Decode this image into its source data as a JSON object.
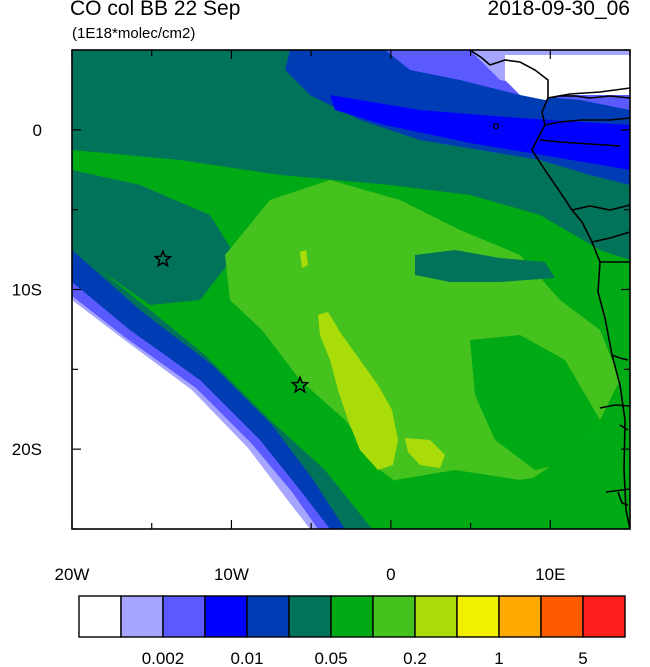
{
  "header": {
    "title": "CO col BB 22 Sep",
    "subtitle": "(1E18*molec/cm2)",
    "datetime": "2018-09-30_06"
  },
  "axes": {
    "lon_ticks": [
      {
        "label": "20W",
        "lon": -20
      },
      {
        "label": "10W",
        "lon": -10
      },
      {
        "label": "0",
        "lon": 0
      },
      {
        "label": "10E",
        "lon": 10
      }
    ],
    "lat_ticks": [
      {
        "label": "0",
        "lat": 0
      },
      {
        "label": "10S",
        "lat": -10
      },
      {
        "label": "20S",
        "lat": -20
      }
    ],
    "lon_range": [
      -20,
      15
    ],
    "lat_range": [
      -25,
      5
    ]
  },
  "colorbar": {
    "colors": [
      "#ffffff",
      "#a6a6ff",
      "#5a5aff",
      "#0000ff",
      "#003cb4",
      "#00735a",
      "#00aa14",
      "#46c21e",
      "#aadc0a",
      "#f0f000",
      "#ffaa00",
      "#ff5a00",
      "#ff1e1e"
    ],
    "labels": [
      "0.002",
      "0.01",
      "0.05",
      "0.2",
      "1",
      "5"
    ]
  },
  "markers": [
    {
      "name": "star-marker-north",
      "lon": -14.3,
      "lat": -8.1
    },
    {
      "name": "star-marker-south",
      "lon": -5.7,
      "lat": -16.0
    }
  ],
  "colors": {
    "dark_teal": "#00735a",
    "green": "#00aa14",
    "light_green": "#46c21e",
    "yellow_green": "#aadc0a",
    "blue": "#0000ff",
    "navy": "#003cb4",
    "medium_blue": "#5a5aff",
    "lavender": "#a6a6ff"
  }
}
